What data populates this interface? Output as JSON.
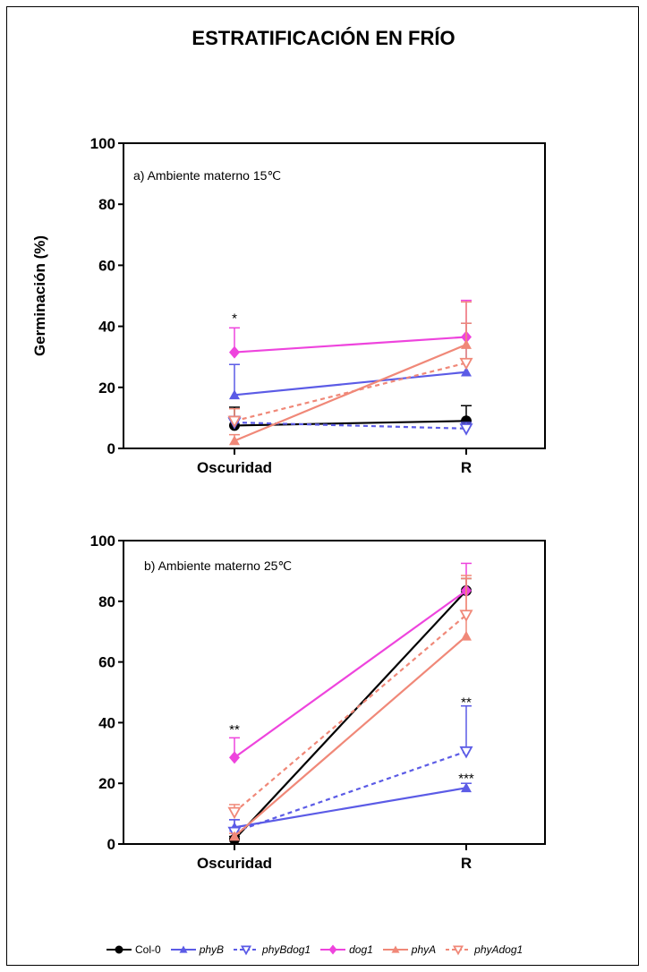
{
  "page": {
    "title": "ESTRATIFICACIÓN EN FRÍO"
  },
  "colors": {
    "col0": "#000000",
    "phyB": "#5b5be6",
    "phyBdog1": "#5b5be6",
    "dog1": "#ee44dd",
    "phyA": "#f08878",
    "phyAdog1": "#f08878"
  },
  "legend": [
    {
      "key": "col0",
      "label": "Col-0",
      "marker": "circle",
      "dashed": false,
      "italic": false
    },
    {
      "key": "phyB",
      "label": "phyB",
      "marker": "triangle-up",
      "dashed": false,
      "italic": true
    },
    {
      "key": "phyBdog1",
      "label": "phyBdog1",
      "marker": "triangle-down-open",
      "dashed": true,
      "italic": true
    },
    {
      "key": "dog1",
      "label": "dog1",
      "marker": "diamond",
      "dashed": false,
      "italic": true
    },
    {
      "key": "phyA",
      "label": "phyA",
      "marker": "triangle-up",
      "dashed": false,
      "italic": true
    },
    {
      "key": "phyAdog1",
      "label": "phyAdog1",
      "marker": "triangle-down-open",
      "dashed": true,
      "italic": true
    }
  ],
  "chart_data": [
    {
      "type": "line",
      "panel_label": "a) Ambiente materno 15℃",
      "ylabel": "Germinación (%)",
      "categories": [
        "Oscuridad",
        "R"
      ],
      "ylim": [
        0,
        100
      ],
      "yticks": [
        "0",
        "20",
        "40",
        "60",
        "80",
        "100"
      ],
      "series": [
        {
          "name": "Col-0",
          "key": "col0",
          "values": [
            7.5,
            9
          ],
          "errors": [
            6,
            5
          ]
        },
        {
          "name": "phyB",
          "key": "phyB",
          "values": [
            17.5,
            25
          ],
          "errors": [
            10,
            16
          ]
        },
        {
          "name": "phyBdog1",
          "key": "phyBdog1",
          "values": [
            8.5,
            6.5
          ],
          "errors": [
            2,
            2
          ]
        },
        {
          "name": "dog1",
          "key": "dog1",
          "values": [
            31.5,
            36.5
          ],
          "errors": [
            8,
            12
          ]
        },
        {
          "name": "phyA",
          "key": "phyA",
          "values": [
            2.5,
            34
          ],
          "errors": [
            2,
            14
          ]
        },
        {
          "name": "phyAdog1",
          "key": "phyAdog1",
          "values": [
            9,
            28
          ],
          "errors": [
            4,
            13
          ]
        }
      ],
      "annotations": [
        {
          "text": "*",
          "category": "Oscuridad",
          "y": 43
        }
      ]
    },
    {
      "type": "line",
      "panel_label": "b) Ambiente materno 25℃",
      "ylabel": "",
      "categories": [
        "Oscuridad",
        "R"
      ],
      "ylim": [
        0,
        100
      ],
      "yticks": [
        "0",
        "20",
        "40",
        "60",
        "80",
        "100"
      ],
      "series": [
        {
          "name": "Col-0",
          "key": "col0",
          "values": [
            1.5,
            83.5
          ],
          "errors": [
            1,
            4
          ]
        },
        {
          "name": "phyB",
          "key": "phyB",
          "values": [
            5.5,
            18.5
          ],
          "errors": [
            2.5,
            1.5
          ]
        },
        {
          "name": "phyBdog1",
          "key": "phyBdog1",
          "values": [
            4,
            30.5
          ],
          "errors": [
            4,
            15
          ]
        },
        {
          "name": "dog1",
          "key": "dog1",
          "values": [
            28.5,
            83.5
          ],
          "errors": [
            6.5,
            9
          ]
        },
        {
          "name": "phyA",
          "key": "phyA",
          "values": [
            2.5,
            68.5
          ],
          "errors": [
            1,
            19
          ]
        },
        {
          "name": "phyAdog1",
          "key": "phyAdog1",
          "values": [
            10.5,
            75.5
          ],
          "errors": [
            2.5,
            13
          ]
        }
      ],
      "annotations": [
        {
          "text": "**",
          "category": "Oscuridad",
          "y": 38
        },
        {
          "text": "**",
          "category": "R",
          "y": 47
        },
        {
          "text": "***",
          "category": "R",
          "y": 22
        }
      ]
    }
  ]
}
